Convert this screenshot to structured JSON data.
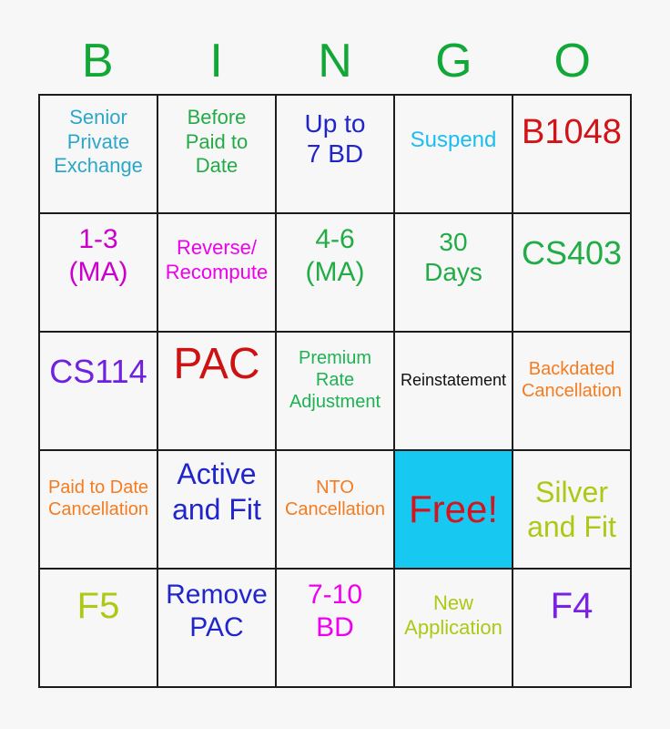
{
  "title": {
    "letters": [
      "B",
      "I",
      "N",
      "G",
      "O"
    ],
    "color": "#12a837"
  },
  "colors": {
    "page_bg": "#f7f7f7",
    "grid_border": "#1c1c1c",
    "free_cell_bg": "#17c8f0"
  },
  "board": {
    "rows": [
      [
        {
          "label": "Senior\nPrivate\nExchange",
          "color": "#2ba7c9",
          "size": 22
        },
        {
          "label": "Before\nPaid to\nDate",
          "color": "#21ac46",
          "size": 22
        },
        {
          "label": "Up to\n7 BD",
          "color": "#2224cb",
          "size": 28
        },
        {
          "label": "Suspend",
          "color": "#1cbdf0",
          "size": 24
        },
        {
          "label": "B1048",
          "color": "#d21418",
          "size": 38
        }
      ],
      [
        {
          "label": "1-3\n(MA)",
          "color": "#cc00cc",
          "size": 30
        },
        {
          "label": "Reverse/\nRecompute",
          "color": "#ee00ee",
          "size": 22
        },
        {
          "label": "4-6\n(MA)",
          "color": "#21ac46",
          "size": 30
        },
        {
          "label": "30\nDays",
          "color": "#21ac46",
          "size": 28
        },
        {
          "label": "CS403",
          "color": "#21ac46",
          "size": 36
        }
      ],
      [
        {
          "label": "CS114",
          "color": "#7021e0",
          "size": 36
        },
        {
          "label": "PAC",
          "color": "#cd1212",
          "size": 48
        },
        {
          "label": "Premium\nRate\nAdjustment",
          "color": "#1db352",
          "size": 20
        },
        {
          "label": "Reinstatement",
          "color": "#111111",
          "size": 18
        },
        {
          "label": "Backdated\nCancellation",
          "color": "#f47c20",
          "size": 20
        }
      ],
      [
        {
          "label": "Paid to Date\nCancellation",
          "color": "#f47c20",
          "size": 20
        },
        {
          "label": "Active\nand Fit",
          "color": "#2126cc",
          "size": 32
        },
        {
          "label": "NTO\nCancellation",
          "color": "#f47c20",
          "size": 20
        },
        {
          "label": "Free!",
          "color": "#d51420",
          "size": 42,
          "bg": "#17c8f0",
          "valign": "center"
        },
        {
          "label": "Silver\nand Fit",
          "color": "#aec815",
          "size": 32,
          "valign": "center"
        }
      ],
      [
        {
          "label": "F5",
          "color": "#aec815",
          "size": 40
        },
        {
          "label": "Remove\nPAC",
          "color": "#2126cc",
          "size": 30
        },
        {
          "label": "7-10\nBD",
          "color": "#ee00ee",
          "size": 30
        },
        {
          "label": "New\nApplication",
          "color": "#aec815",
          "size": 22
        },
        {
          "label": "F4",
          "color": "#7a22e2",
          "size": 40
        }
      ]
    ]
  }
}
